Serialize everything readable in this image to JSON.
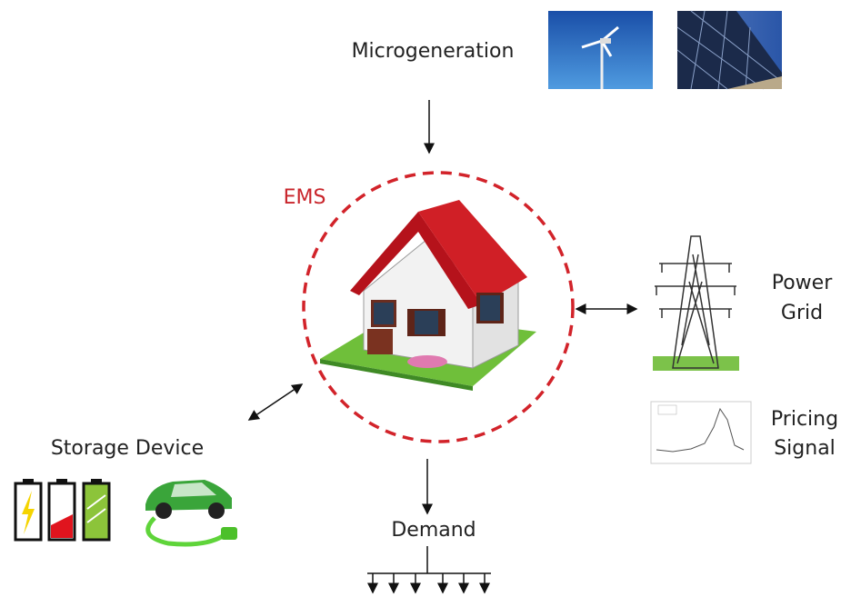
{
  "labels": {
    "microgeneration": "Microgeneration",
    "ems": "EMS",
    "power_grid": [
      "Power",
      "Grid"
    ],
    "pricing_signal": [
      "Pricing",
      "Signal"
    ],
    "storage_device": "Storage Device",
    "demand": "Demand"
  }
}
